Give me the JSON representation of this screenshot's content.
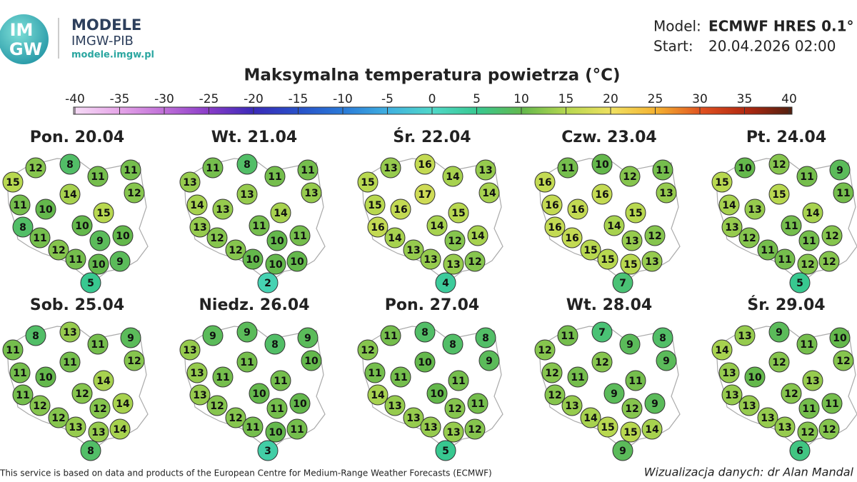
{
  "header": {
    "logo_top": "IM",
    "logo_bottom": "GW",
    "brand": "MODELE",
    "org": "IMGW-PIB",
    "url": "modele.imgw.pl",
    "model_label": "Model:",
    "model": "ECMWF HRES 0.1°",
    "start_label": "Start:",
    "start": "20.04.2026 02:00"
  },
  "title": "Maksymalna temperatura powietrza (°C)",
  "colorbar": {
    "ticks": [
      -40,
      -35,
      -30,
      -25,
      -20,
      -15,
      -10,
      -5,
      0,
      5,
      10,
      15,
      20,
      25,
      30,
      35,
      40
    ],
    "colors": [
      "#f6dcf6",
      "#e6a6e8",
      "#c070d8",
      "#8a3cc8",
      "#3a2ab8",
      "#2850c8",
      "#2a7ad8",
      "#40b0e0",
      "#50d8c8",
      "#38c890",
      "#64b84c",
      "#b8d850",
      "#f0e060",
      "#f4b030",
      "#e05020",
      "#b02810",
      "#502010"
    ]
  },
  "maps": [
    {
      "day": "Pon. 20.04",
      "values": [
        15,
        12,
        8,
        11,
        11,
        12,
        14,
        11,
        10,
        15,
        8,
        11,
        10,
        9,
        10,
        12,
        11,
        10,
        9,
        5
      ]
    },
    {
      "day": "Wt. 21.04",
      "values": [
        13,
        11,
        8,
        11,
        11,
        13,
        13,
        14,
        13,
        14,
        13,
        12,
        11,
        10,
        11,
        12,
        10,
        10,
        10,
        2
      ]
    },
    {
      "day": "Śr. 22.04",
      "values": [
        15,
        13,
        16,
        14,
        13,
        14,
        17,
        15,
        16,
        15,
        16,
        14,
        14,
        12,
        14,
        13,
        13,
        13,
        12,
        4
      ]
    },
    {
      "day": "Czw. 23.04",
      "values": [
        16,
        11,
        10,
        12,
        11,
        13,
        16,
        16,
        16,
        15,
        16,
        16,
        14,
        13,
        12,
        15,
        15,
        15,
        13,
        7
      ]
    },
    {
      "day": "Pt. 24.04",
      "values": [
        15,
        10,
        12,
        11,
        9,
        11,
        15,
        14,
        13,
        14,
        13,
        12,
        11,
        11,
        12,
        11,
        11,
        12,
        12,
        5
      ]
    },
    {
      "day": "Sob. 25.04",
      "values": [
        11,
        8,
        13,
        11,
        9,
        12,
        11,
        11,
        10,
        14,
        11,
        12,
        12,
        12,
        14,
        12,
        13,
        13,
        14,
        8
      ]
    },
    {
      "day": "Niedz. 26.04",
      "values": [
        13,
        9,
        9,
        8,
        9,
        10,
        11,
        13,
        11,
        11,
        13,
        12,
        10,
        11,
        10,
        12,
        11,
        10,
        11,
        3
      ]
    },
    {
      "day": "Pon. 27.04",
      "values": [
        12,
        11,
        8,
        8,
        8,
        9,
        10,
        11,
        11,
        11,
        14,
        13,
        10,
        12,
        11,
        13,
        13,
        13,
        12,
        5
      ]
    },
    {
      "day": "Wt. 28.04",
      "values": [
        12,
        11,
        7,
        9,
        8,
        9,
        12,
        12,
        11,
        11,
        12,
        13,
        9,
        12,
        9,
        14,
        15,
        15,
        14,
        9
      ]
    },
    {
      "day": "Śr. 29.04",
      "values": [
        14,
        13,
        9,
        11,
        10,
        12,
        12,
        13,
        10,
        13,
        13,
        13,
        12,
        11,
        11,
        13,
        13,
        12,
        12,
        6
      ]
    }
  ],
  "footer": {
    "source": "This service is based on data and products of the European Centre for Medium-Range Weather Forecasts (ECMWF)",
    "credit": "Wizualizacja danych: dr Alan Mandal"
  }
}
